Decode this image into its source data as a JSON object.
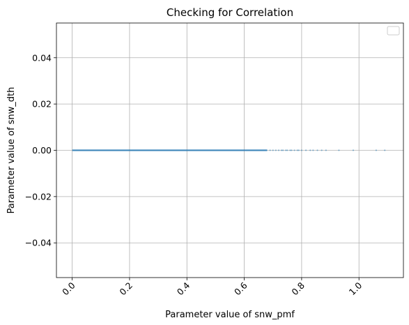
{
  "chart_data": {
    "type": "scatter",
    "title": "Checking for Correlation",
    "xlabel": "Parameter value of snw_pmf",
    "ylabel": "Parameter value of snw_dth",
    "xlim": [
      -0.055,
      1.155
    ],
    "ylim": [
      -0.055,
      0.055
    ],
    "xticks": [
      0.0,
      0.2,
      0.4,
      0.6,
      0.8,
      1.0
    ],
    "xtick_labels": [
      "0.0",
      "0.2",
      "0.4",
      "0.6",
      "0.8",
      "1.0"
    ],
    "xtick_rotation": 45,
    "yticks": [
      -0.04,
      -0.02,
      0.0,
      0.02,
      0.04
    ],
    "ytick_labels": [
      "−0.04",
      "−0.02",
      "0.00",
      "0.02",
      "0.04"
    ],
    "grid": true,
    "legend": {
      "placement": "upper-right",
      "entries": []
    },
    "series": [
      {
        "color": "#1f77b4",
        "dense_range": [
          0.0,
          0.68
        ],
        "points": [
          {
            "x": 0.69,
            "y": 0
          },
          {
            "x": 0.7,
            "y": 0
          },
          {
            "x": 0.71,
            "y": 0
          },
          {
            "x": 0.72,
            "y": 0
          },
          {
            "x": 0.73,
            "y": 0
          },
          {
            "x": 0.735,
            "y": 0
          },
          {
            "x": 0.745,
            "y": 0
          },
          {
            "x": 0.75,
            "y": 0
          },
          {
            "x": 0.76,
            "y": 0
          },
          {
            "x": 0.765,
            "y": 0
          },
          {
            "x": 0.775,
            "y": 0
          },
          {
            "x": 0.785,
            "y": 0
          },
          {
            "x": 0.79,
            "y": 0
          },
          {
            "x": 0.8,
            "y": 0
          },
          {
            "x": 0.815,
            "y": 0
          },
          {
            "x": 0.83,
            "y": 0
          },
          {
            "x": 0.84,
            "y": 0
          },
          {
            "x": 0.855,
            "y": 0
          },
          {
            "x": 0.87,
            "y": 0
          },
          {
            "x": 0.885,
            "y": 0
          },
          {
            "x": 0.93,
            "y": 0
          },
          {
            "x": 0.98,
            "y": 0
          },
          {
            "x": 1.06,
            "y": 0
          },
          {
            "x": 1.09,
            "y": 0
          }
        ]
      }
    ]
  }
}
